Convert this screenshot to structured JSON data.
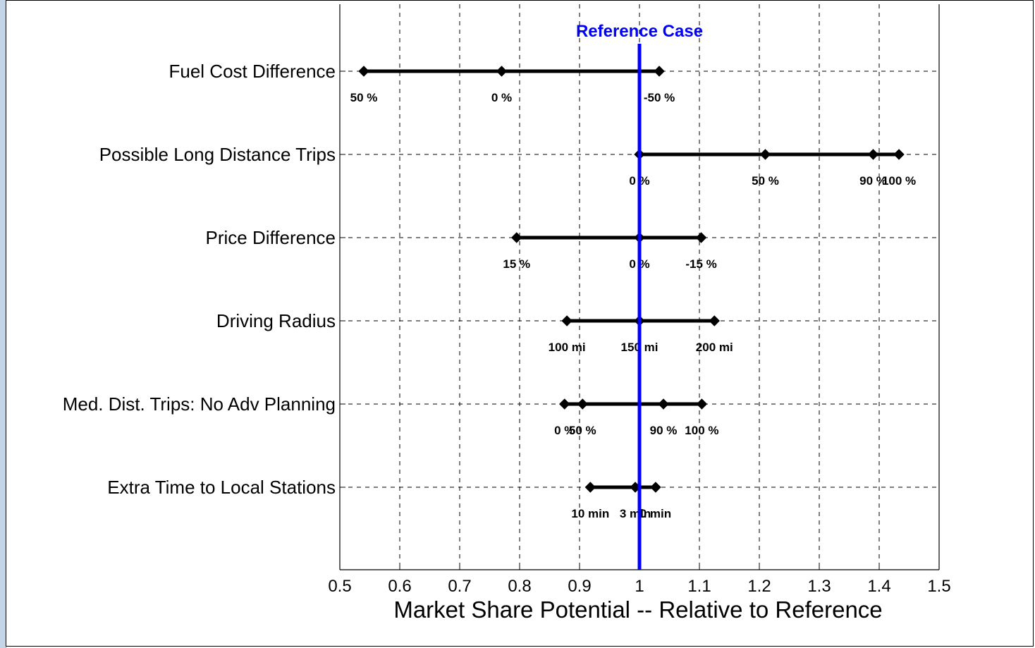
{
  "chart_data": {
    "type": "scatter",
    "title": "",
    "xlabel": "Market Share Potential -- Relative to Reference",
    "ylabel": "",
    "xlim": [
      0.5,
      1.5
    ],
    "xticks": [
      "0.5",
      "0.6",
      "0.7",
      "0.8",
      "0.9",
      "1",
      "1.1",
      "1.2",
      "1.3",
      "1.4",
      "1.5"
    ],
    "grid": true,
    "reference": {
      "label": "Reference Case",
      "x": 1.0,
      "color": "#0000ff"
    },
    "series": [
      {
        "category": "Fuel Cost Difference",
        "points": [
          {
            "x": 0.54,
            "label": "50 %"
          },
          {
            "x": 0.77,
            "label": "0 %"
          },
          {
            "x": 1.033,
            "label": "-50 %"
          }
        ]
      },
      {
        "category": "Possible Long Distance Trips",
        "points": [
          {
            "x": 1.0,
            "label": "0 %"
          },
          {
            "x": 1.21,
            "label": "50 %"
          },
          {
            "x": 1.39,
            "label": "90 %"
          },
          {
            "x": 1.433,
            "label": "100 %"
          }
        ]
      },
      {
        "category": "Price Difference",
        "points": [
          {
            "x": 0.795,
            "label": "15 %"
          },
          {
            "x": 1.0,
            "label": "0 %"
          },
          {
            "x": 1.103,
            "label": "-15 %"
          }
        ]
      },
      {
        "category": "Driving Radius",
        "points": [
          {
            "x": 0.879,
            "label": "100 mi"
          },
          {
            "x": 1.0,
            "label": "150 mi"
          },
          {
            "x": 1.125,
            "label": "200 mi"
          }
        ]
      },
      {
        "category": "Med. Dist. Trips: No Adv Planning",
        "points": [
          {
            "x": 0.875,
            "label": "0 %"
          },
          {
            "x": 0.905,
            "label": "50 %"
          },
          {
            "x": 1.04,
            "label": "90 %"
          },
          {
            "x": 1.104,
            "label": "100 %"
          }
        ]
      },
      {
        "category": "Extra Time to Local Stations",
        "points": [
          {
            "x": 0.918,
            "label": "10 min"
          },
          {
            "x": 0.993,
            "label": "3 min"
          },
          {
            "x": 1.027,
            "label": "0 min"
          }
        ]
      }
    ]
  }
}
